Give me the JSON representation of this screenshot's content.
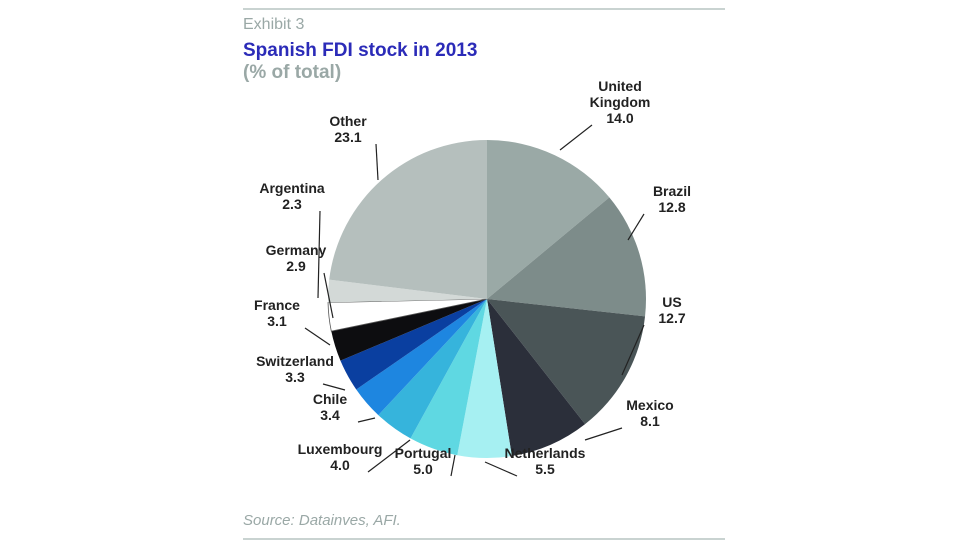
{
  "header": {
    "exhibit": "Exhibit 3",
    "title": "Spanish FDI stock in 2013",
    "subtitle": "(% of total)"
  },
  "footer": {
    "source": "Source: Datainves, AFI."
  },
  "chart_data": {
    "type": "pie",
    "title": "Spanish FDI stock in 2013",
    "subtitle": "(% of total)",
    "unit": "% of total",
    "slices": [
      {
        "name": "United Kingdom",
        "label_lines": [
          "United",
          "Kingdom"
        ],
        "value": 14.0,
        "display": "14.0",
        "color": "#9aa9a6"
      },
      {
        "name": "Brazil",
        "label_lines": [
          "Brazil"
        ],
        "value": 12.8,
        "display": "12.8",
        "color": "#7d8c8a"
      },
      {
        "name": "US",
        "label_lines": [
          "US"
        ],
        "value": 12.7,
        "display": "12.7",
        "color": "#4a5557"
      },
      {
        "name": "Mexico",
        "label_lines": [
          "Mexico"
        ],
        "value": 8.1,
        "display": "8.1",
        "color": "#2b2f3a"
      },
      {
        "name": "Netherlands",
        "label_lines": [
          "Netherlands"
        ],
        "value": 5.5,
        "display": "5.5",
        "color": "#a6f0f2"
      },
      {
        "name": "Portugal",
        "label_lines": [
          "Portugal"
        ],
        "value": 5.0,
        "display": "5.0",
        "color": "#5fd8e2"
      },
      {
        "name": "Luxembourg",
        "label_lines": [
          "Luxembourg"
        ],
        "value": 4.0,
        "display": "4.0",
        "color": "#36b4dc"
      },
      {
        "name": "Chile",
        "label_lines": [
          "Chile"
        ],
        "value": 3.4,
        "display": "3.4",
        "color": "#1e86e0"
      },
      {
        "name": "Switzerland",
        "label_lines": [
          "Switzerland"
        ],
        "value": 3.3,
        "display": "3.3",
        "color": "#0a3fa0"
      },
      {
        "name": "France",
        "label_lines": [
          "France"
        ],
        "value": 3.1,
        "display": "3.1",
        "color": "#0d0d10"
      },
      {
        "name": "Germany",
        "label_lines": [
          "Germany"
        ],
        "value": 2.9,
        "display": "2.9",
        "color": "#ffffff"
      },
      {
        "name": "Argentina",
        "label_lines": [
          "Argentina"
        ],
        "value": 2.3,
        "display": "2.3",
        "color": "#d3d9d7"
      },
      {
        "name": "Other",
        "label_lines": [
          "Other"
        ],
        "value": 23.1,
        "display": "23.1",
        "color": "#b5bfbd"
      }
    ]
  }
}
